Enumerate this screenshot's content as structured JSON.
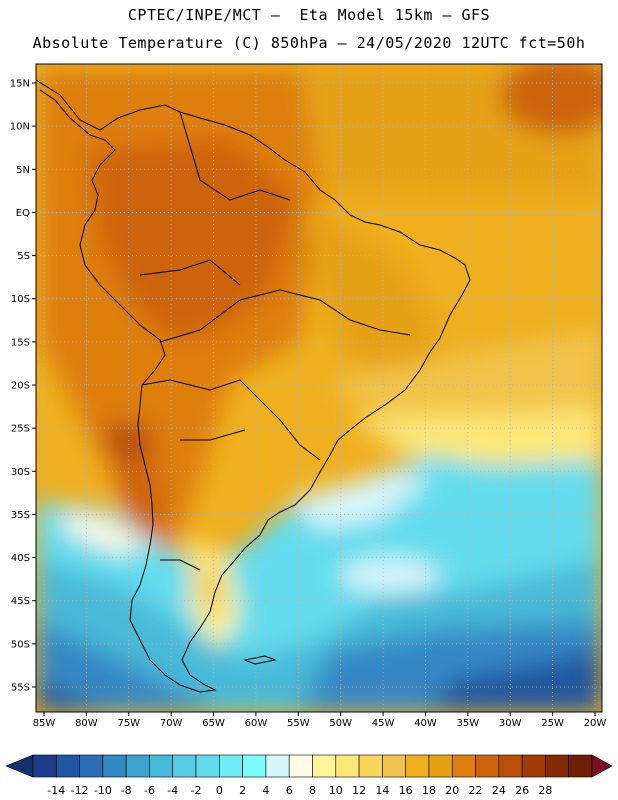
{
  "title_line1": "CPTEC/INPE/MCT –  Eta Model 15km – GFS",
  "title_line2": "Absolute Temperature (C) 850hPa – 24/05/2020 12UTC fct=50h",
  "lat_ticks": [
    "15N",
    "10N",
    "5N",
    "EQ",
    "5S",
    "10S",
    "15S",
    "20S",
    "25S",
    "30S",
    "35S",
    "40S",
    "45S",
    "50S",
    "55S"
  ],
  "lon_ticks": [
    "85W",
    "80W",
    "75W",
    "70W",
    "65W",
    "60W",
    "55W",
    "50W",
    "45W",
    "40W",
    "35W",
    "30W",
    "25W",
    "20W"
  ],
  "colorbar": {
    "labels": [
      "-14",
      "-12",
      "-10",
      "-8",
      "-6",
      "-4",
      "-2",
      "0",
      "2",
      "4",
      "6",
      "8",
      "10",
      "12",
      "14",
      "16",
      "18",
      "20",
      "22",
      "24",
      "26",
      "28"
    ],
    "colors": [
      "#1a3c8a",
      "#2156a0",
      "#2a6fb3",
      "#3488c4",
      "#3ea2cf",
      "#48b9d8",
      "#56cde3",
      "#62dced",
      "#70ecf6",
      "#7ffbff",
      "#d6f6fb",
      "#fffbe6",
      "#fff59a",
      "#fde877",
      "#f8d65c",
      "#f2c44b",
      "#efb020",
      "#e6a213",
      "#de7e0d",
      "#cc640b",
      "#b85009",
      "#a03a07",
      "#842a05",
      "#6e1e04"
    ],
    "end_left": "#123070",
    "end_right": "#7a0e2a"
  },
  "colors": {
    "background": "#ffffff",
    "frame": "#000000",
    "grid": "#b4b4b4",
    "coast": "#000000"
  }
}
